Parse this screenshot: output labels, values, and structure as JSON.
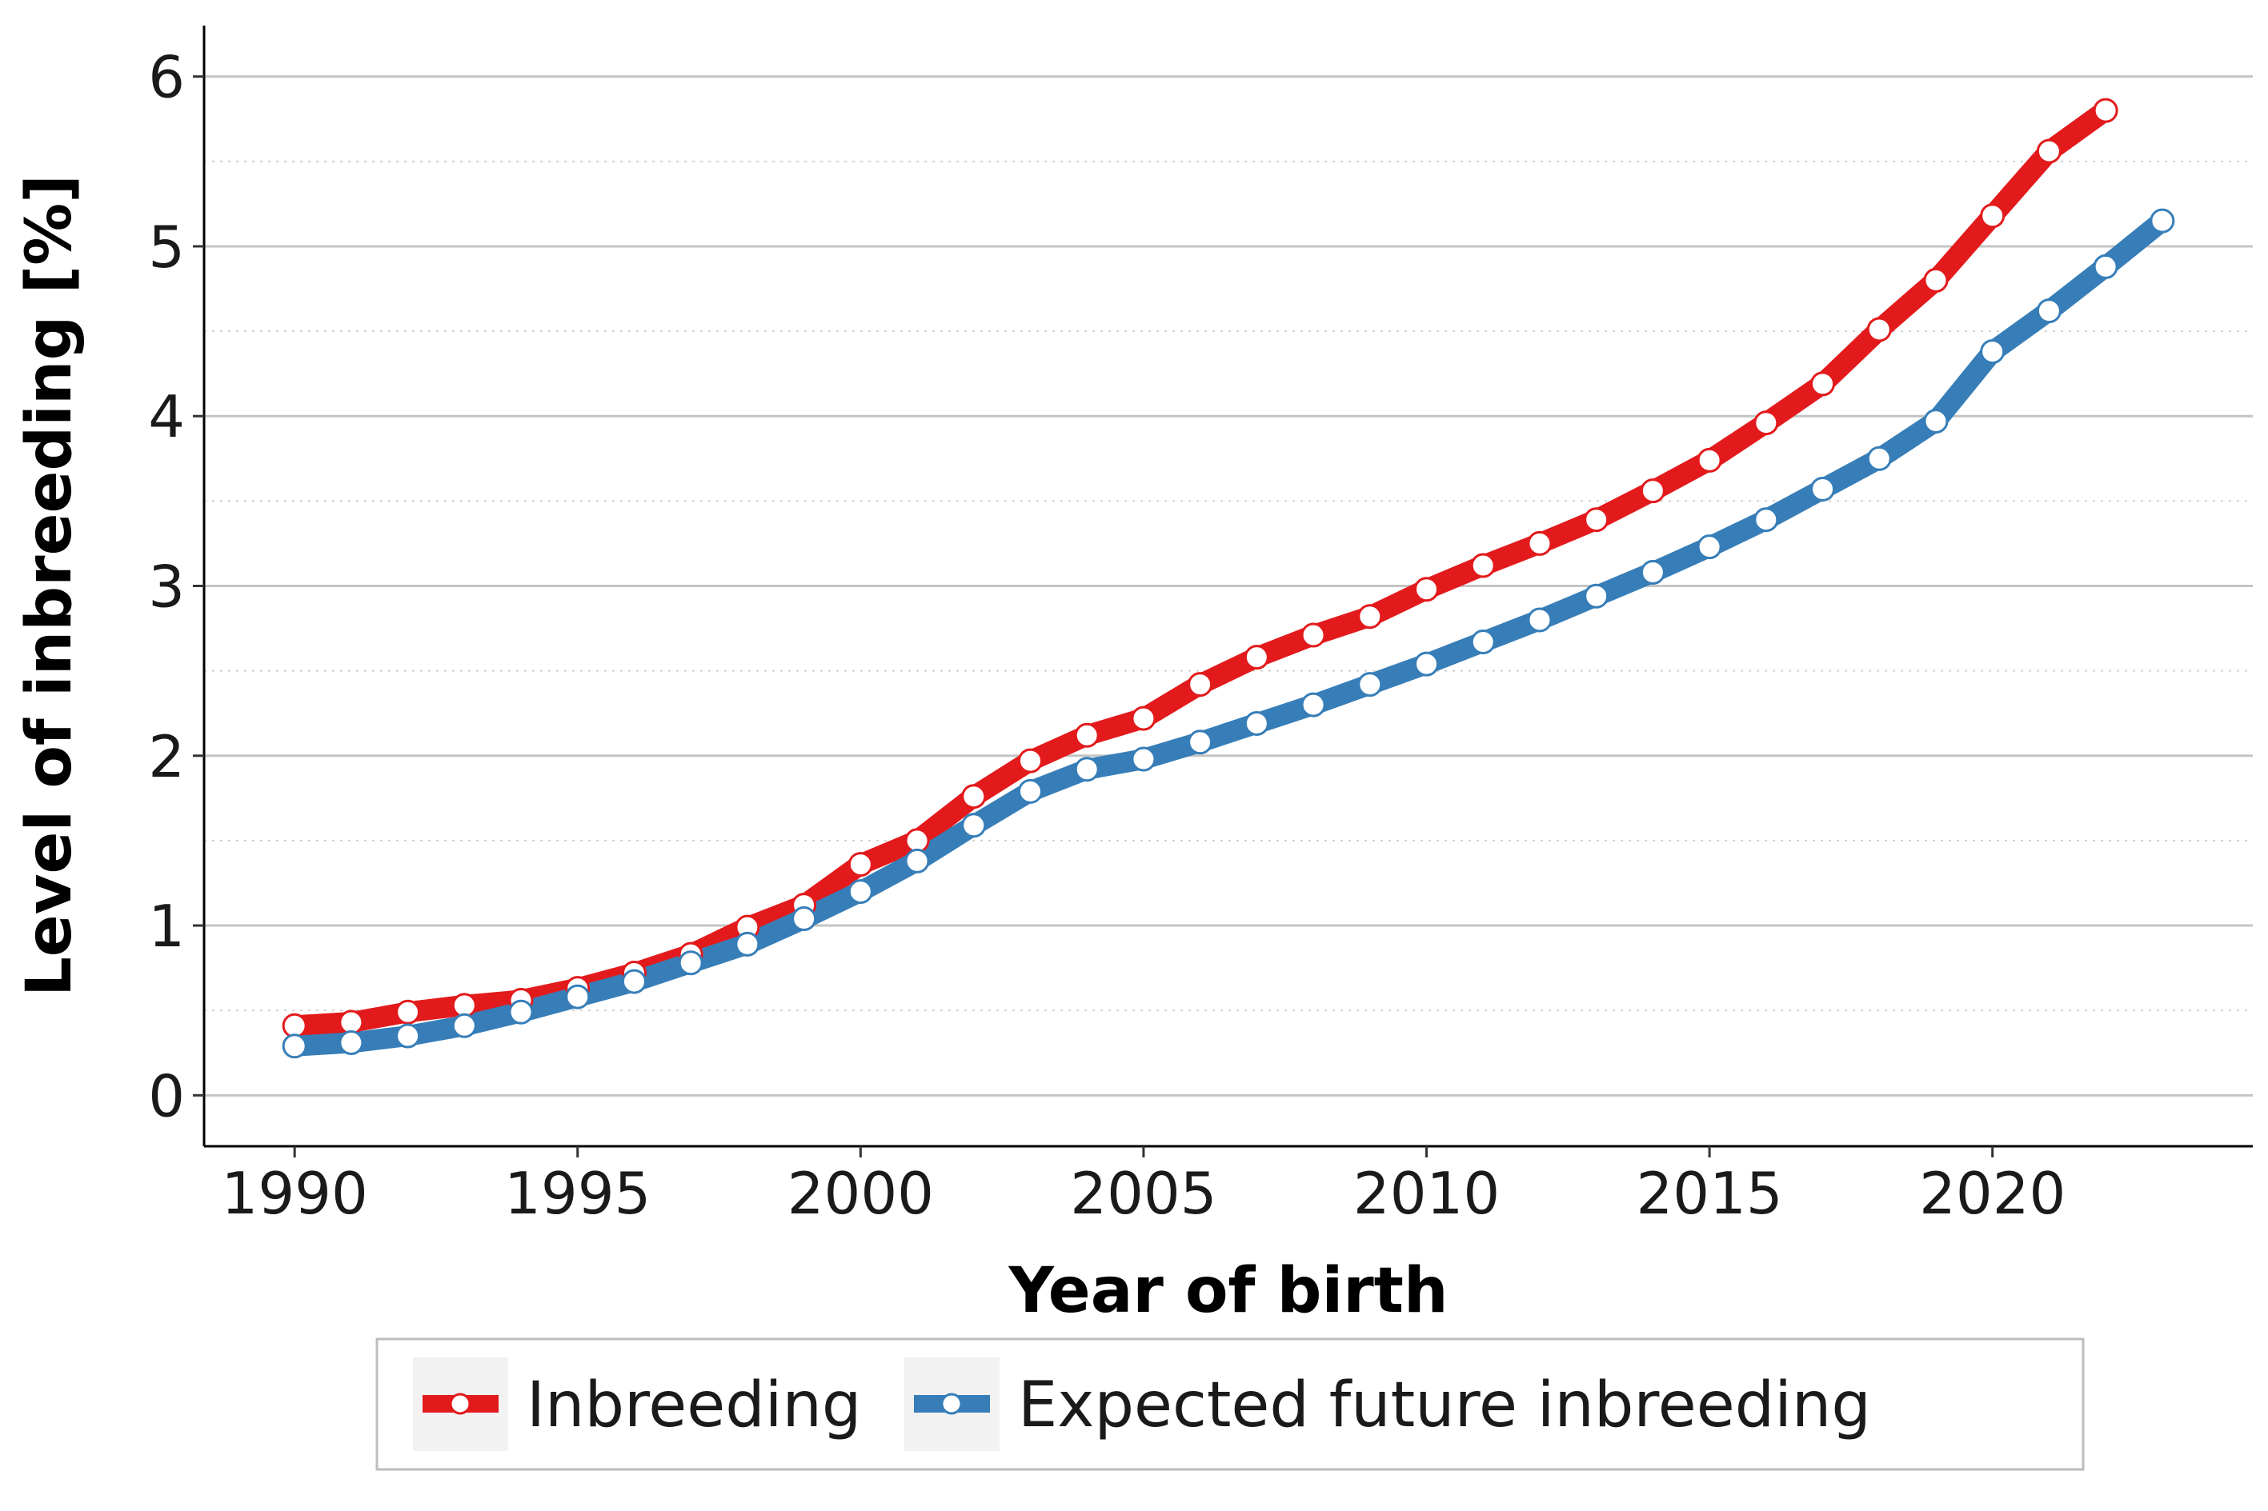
{
  "chart_data": {
    "type": "line",
    "title": "",
    "xlabel": "Year of birth",
    "ylabel": "Level of inbreeding [%]",
    "xlim": [
      1988.4,
      2024.6
    ],
    "ylim": [
      -0.3,
      6.3
    ],
    "xticks": [
      1990,
      1995,
      2000,
      2005,
      2010,
      2015,
      2020
    ],
    "yticks": [
      0,
      1,
      2,
      3,
      4,
      5,
      6
    ],
    "grid": "horizontal major solid, minor dotted",
    "legend_position": "bottom",
    "series": [
      {
        "name": "Inbreeding",
        "color": "#e31a1c",
        "x": [
          1990,
          1991,
          1992,
          1993,
          1994,
          1995,
          1996,
          1997,
          1998,
          1999,
          2000,
          2001,
          2002,
          2003,
          2004,
          2005,
          2006,
          2007,
          2008,
          2009,
          2010,
          2011,
          2012,
          2013,
          2014,
          2015,
          2016,
          2017,
          2018,
          2019,
          2020,
          2021,
          2022
        ],
        "values": [
          0.41,
          0.43,
          0.49,
          0.53,
          0.56,
          0.63,
          0.72,
          0.83,
          0.99,
          1.12,
          1.36,
          1.5,
          1.76,
          1.97,
          2.12,
          2.22,
          2.42,
          2.58,
          2.71,
          2.82,
          2.98,
          3.12,
          3.25,
          3.39,
          3.56,
          3.74,
          3.96,
          4.19,
          4.51,
          4.8,
          5.18,
          5.56,
          5.8
        ]
      },
      {
        "name": "Expected future inbreeding",
        "color": "#377eb8",
        "x": [
          1990,
          1991,
          1992,
          1993,
          1994,
          1995,
          1996,
          1997,
          1998,
          1999,
          2000,
          2001,
          2002,
          2003,
          2004,
          2005,
          2006,
          2007,
          2008,
          2009,
          2010,
          2011,
          2012,
          2013,
          2014,
          2015,
          2016,
          2017,
          2018,
          2019,
          2020,
          2021,
          2022,
          2023
        ],
        "values": [
          0.29,
          0.31,
          0.35,
          0.41,
          0.49,
          0.58,
          0.67,
          0.78,
          0.89,
          1.04,
          1.2,
          1.38,
          1.59,
          1.79,
          1.92,
          1.98,
          2.08,
          2.19,
          2.3,
          2.42,
          2.54,
          2.67,
          2.8,
          2.94,
          3.08,
          3.23,
          3.39,
          3.57,
          3.75,
          3.97,
          4.38,
          4.62,
          4.88,
          5.15
        ]
      }
    ]
  }
}
